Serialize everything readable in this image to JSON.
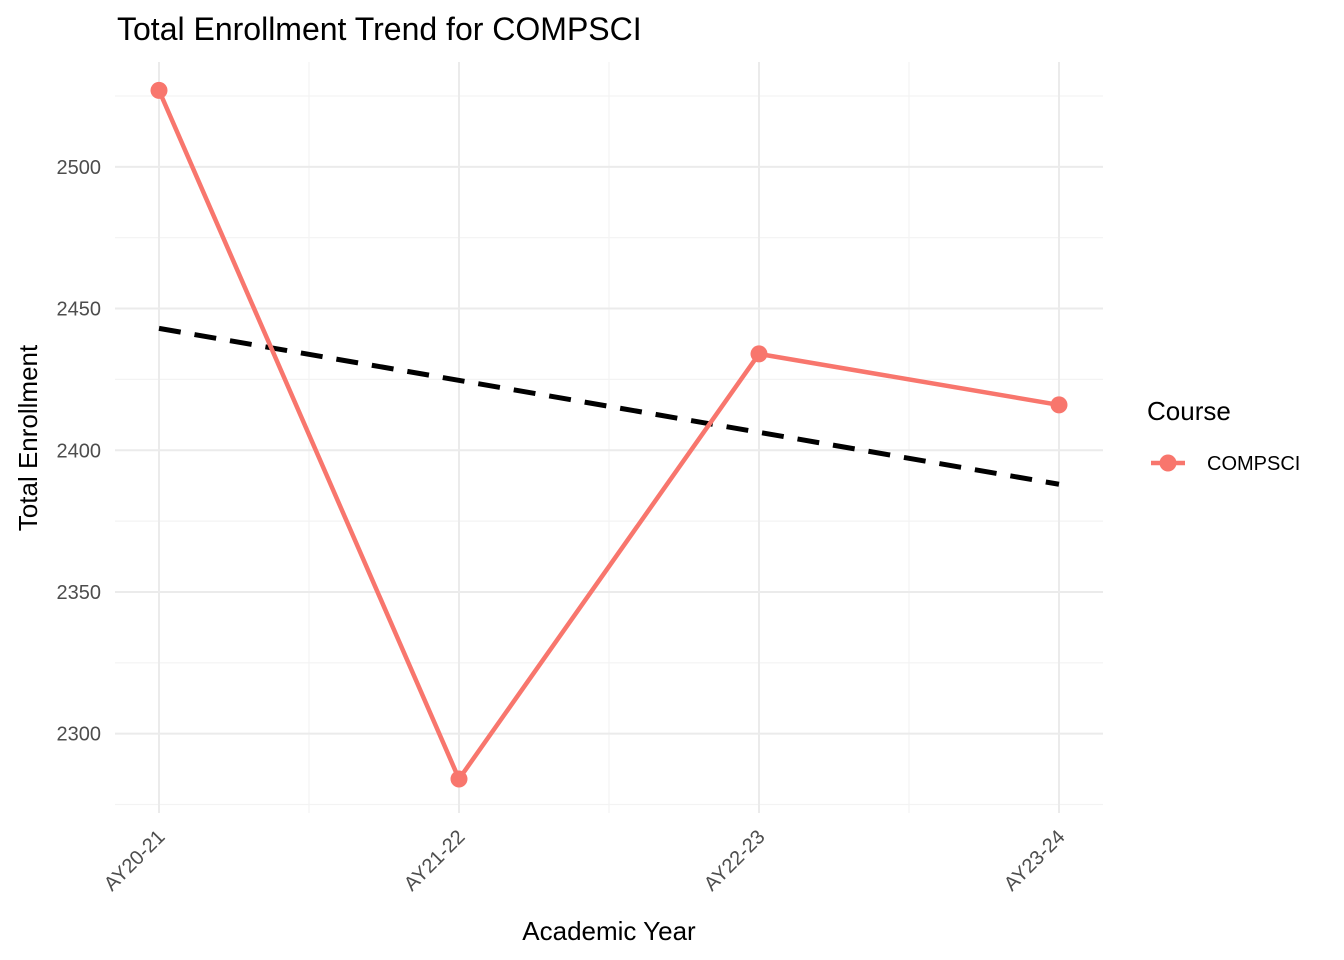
{
  "chart_data": {
    "type": "line",
    "title": "Total Enrollment Trend for COMPSCI",
    "xlabel": "Academic Year",
    "ylabel": "Total Enrollment",
    "categories": [
      "AY20-21",
      "AY21-22",
      "AY22-23",
      "AY23-24"
    ],
    "series": [
      {
        "name": "COMPSCI",
        "values": [
          2527,
          2284,
          2434,
          2416
        ],
        "color": "#f8766d"
      }
    ],
    "trend_line": {
      "style": "dashed",
      "color": "#000000",
      "values": [
        2443,
        2388
      ]
    },
    "y_ticks": [
      2300,
      2350,
      2400,
      2450,
      2500
    ],
    "ylim": [
      2272,
      2537
    ],
    "grid": true,
    "legend": {
      "title": "Course",
      "position": "right"
    }
  }
}
